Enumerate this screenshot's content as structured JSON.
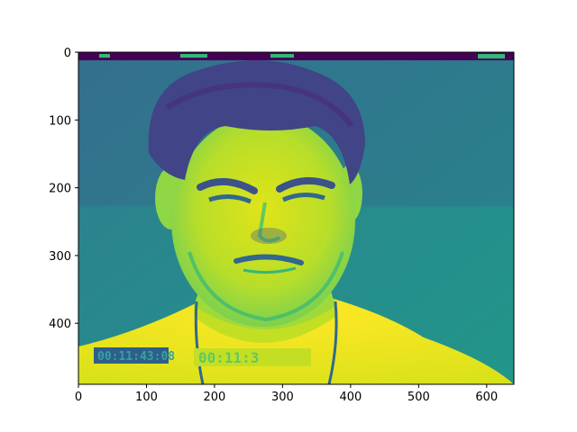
{
  "figure": {
    "image_label": "Viridis-colormapped grayscale video frame of a young man with dark wavy hair making a grimace, wearing a light shirt; timecode overlays at the bottom",
    "colormap": "viridis",
    "timecode_left": "00:11:43:08",
    "timecode_center": "00:11:3"
  },
  "axes": {
    "x_ticks": [
      "0",
      "100",
      "200",
      "300",
      "400",
      "500",
      "600"
    ],
    "y_ticks": [
      "0",
      "100",
      "200",
      "300",
      "400"
    ]
  },
  "colors": {
    "bg_dark": "#3b528b",
    "bg_mid": "#21918c",
    "bg_teal": "#2a8a8c",
    "hair": "#3e4a89",
    "skin": "#b8de29",
    "skin_bright": "#dde318",
    "shirt": "#fde725",
    "band_top": "#440154",
    "shadow": "#31688e"
  }
}
